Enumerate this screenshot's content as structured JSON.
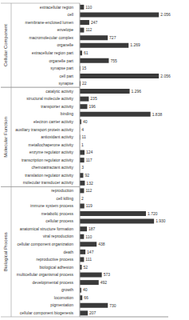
{
  "chart_data": {
    "type": "bar",
    "orientation": "horizontal",
    "data_labels": true,
    "tick_labels": "y",
    "color": "#3a3a3a",
    "xlim": [
      0,
      2300
    ],
    "groups": [
      {
        "name": "Cellular Component",
        "categories": [
          "extracellular region",
          "cell",
          "membrane-enclosed lumen",
          "envelope",
          "macromolecular complex",
          "organelle",
          "extracellular region part",
          "organelle part",
          "synapse part",
          "cell part",
          "synapse"
        ],
        "values": [
          110,
          2056,
          247,
          112,
          727,
          1269,
          61,
          755,
          15,
          2056,
          22
        ],
        "value_labels": [
          "110",
          "2.056",
          "247",
          "112",
          "727",
          "1.269",
          "61",
          "755",
          "15",
          "2.056",
          "22"
        ]
      },
      {
        "name": "Molecular Function",
        "categories": [
          "catalytic activity",
          "structural molecule activity",
          "transporter activity",
          "binding",
          "electron carrier activity",
          "auxiliary transport protein activity",
          "antioxidant activity",
          "metallochaperone activity",
          "enzyme regulator activity",
          "transcription regulator activity",
          "chemoattractant activity",
          "translation regulator activity",
          "molecular transducer activity"
        ],
        "values": [
          1296,
          235,
          196,
          1838,
          40,
          4,
          11,
          1,
          124,
          117,
          3,
          92,
          132
        ],
        "value_labels": [
          "1.296",
          "235",
          "196",
          "1.838",
          "40",
          "4",
          "11",
          "1",
          "124",
          "117",
          "3",
          "92",
          "132"
        ]
      },
      {
        "name": "Biological Process",
        "categories": [
          "reproduction",
          "cell killing",
          "immune system process",
          "metabolic process",
          "cellular process",
          "anatomical structure formation",
          "viral reproduction",
          "cellular component organization",
          "death",
          "reproductive process",
          "biological adhesion",
          "multicellular organismal process",
          "developmental process",
          "growth",
          "locomotion",
          "pigmentation",
          "cellular component biogenesis"
        ],
        "values": [
          112,
          2,
          119,
          1720,
          1930,
          187,
          110,
          438,
          147,
          111,
          52,
          573,
          492,
          40,
          66,
          730,
          207
        ],
        "value_labels": [
          "112",
          "2",
          "119",
          "1.720",
          "1.930",
          "187",
          "110",
          "438",
          "147",
          "111",
          "52",
          "573",
          "492",
          "40",
          "66",
          "730",
          "207"
        ]
      }
    ]
  }
}
